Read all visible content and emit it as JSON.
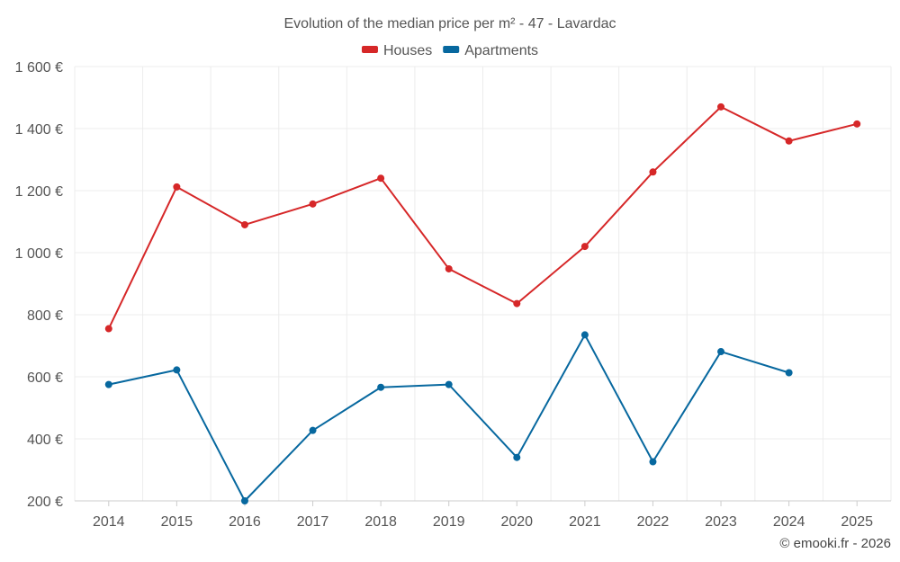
{
  "chart_data": {
    "type": "line",
    "title": "Evolution of the median price per m² - 47 - Lavardac",
    "categories": [
      "2014",
      "2015",
      "2016",
      "2017",
      "2018",
      "2019",
      "2020",
      "2021",
      "2022",
      "2023",
      "2024",
      "2025"
    ],
    "series": [
      {
        "name": "Houses",
        "color": "#d62728",
        "values": [
          755,
          1212,
          1090,
          1157,
          1240,
          948,
          836,
          1020,
          1260,
          1470,
          1360,
          1415
        ]
      },
      {
        "name": "Apartments",
        "color": "#07689f",
        "values": [
          575,
          622,
          200,
          427,
          566,
          575,
          340,
          735,
          326,
          681,
          613,
          null
        ]
      }
    ],
    "y_ticks": [
      {
        "value": 200,
        "label": "200 €"
      },
      {
        "value": 400,
        "label": "400 €"
      },
      {
        "value": 600,
        "label": "600 €"
      },
      {
        "value": 800,
        "label": "800 €"
      },
      {
        "value": 1000,
        "label": "1 000 €"
      },
      {
        "value": 1200,
        "label": "1 200 €"
      },
      {
        "value": 1400,
        "label": "1 400 €"
      },
      {
        "value": 1600,
        "label": "1 600 €"
      }
    ],
    "ylim": [
      200,
      1600
    ],
    "xlabel": "",
    "ylabel": "",
    "legend": "top-center",
    "grid": true,
    "credit": "© emooki.fr - 2026"
  }
}
